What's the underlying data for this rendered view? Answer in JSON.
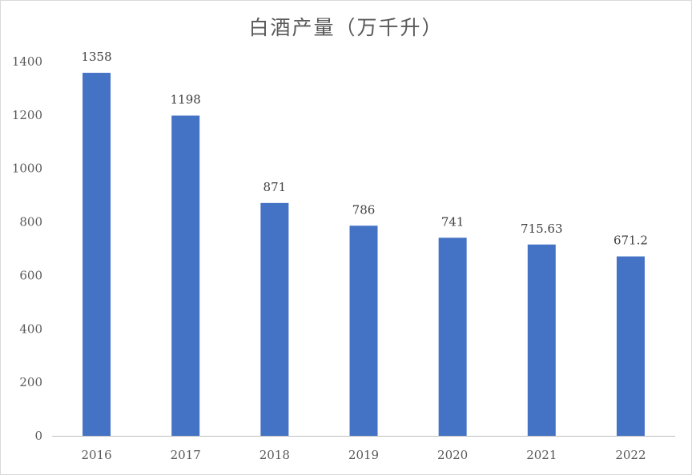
{
  "chart_data": {
    "type": "bar",
    "title": "白酒产量（万千升）",
    "categories": [
      "2016",
      "2017",
      "2018",
      "2019",
      "2020",
      "2021",
      "2022"
    ],
    "series": [
      {
        "values": [
          1358,
          1198,
          871,
          786,
          741,
          715.63,
          671.2
        ],
        "data_labels": [
          "1358",
          "1198",
          "871",
          "786",
          "741",
          "715.63",
          "671.2"
        ]
      }
    ],
    "xlabel": "",
    "ylabel": "",
    "ylim": [
      0,
      1400
    ],
    "yticks": [
      0,
      200,
      400,
      600,
      800,
      1000,
      1200,
      1400
    ],
    "grid": false,
    "legend": "none",
    "bar_color": "#4472c4",
    "axis_color": "#bfbfbf"
  }
}
